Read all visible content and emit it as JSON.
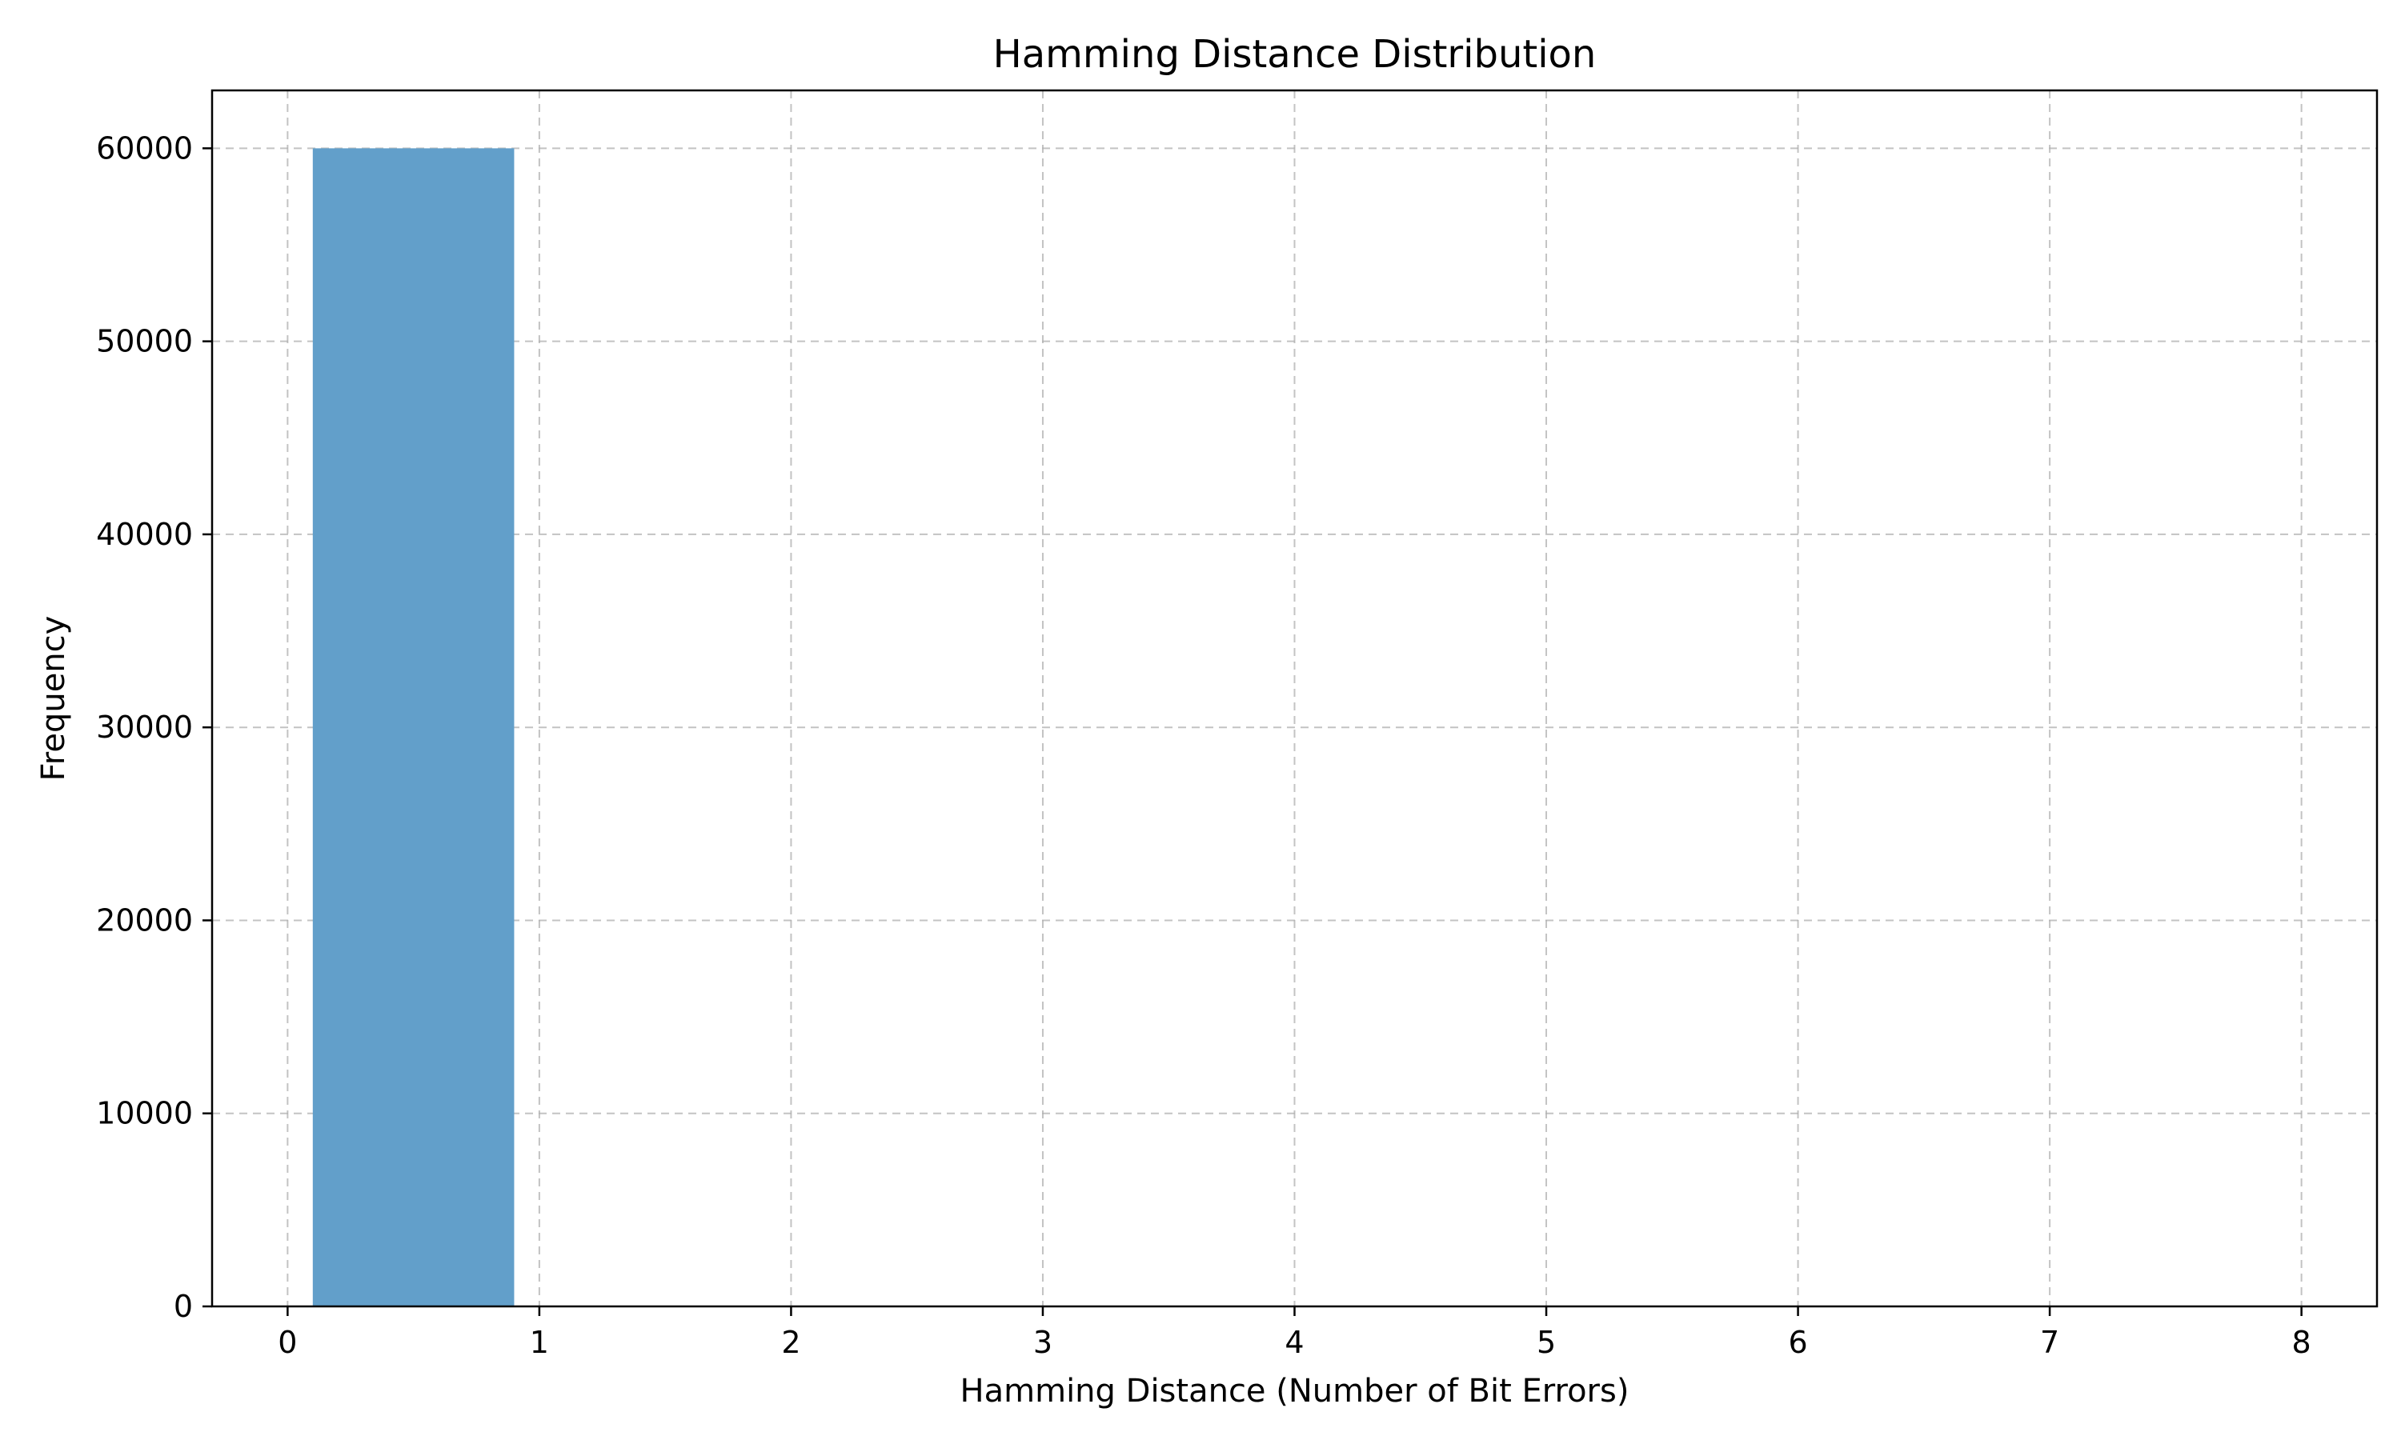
{
  "chart_data": {
    "type": "bar",
    "title": "Hamming Distance Distribution",
    "xlabel": "Hamming Distance (Number of Bit Errors)",
    "ylabel": "Frequency",
    "xlim": [
      -0.3,
      8.3
    ],
    "ylim": [
      0,
      63000
    ],
    "x_ticks": [
      0,
      1,
      2,
      3,
      4,
      5,
      6,
      7,
      8
    ],
    "y_ticks": [
      0,
      10000,
      20000,
      30000,
      40000,
      50000,
      60000
    ],
    "grid": true,
    "bars": [
      {
        "x_start": 0.1,
        "x_end": 0.9,
        "value": 60000
      }
    ],
    "bar_color": "#629fca"
  }
}
